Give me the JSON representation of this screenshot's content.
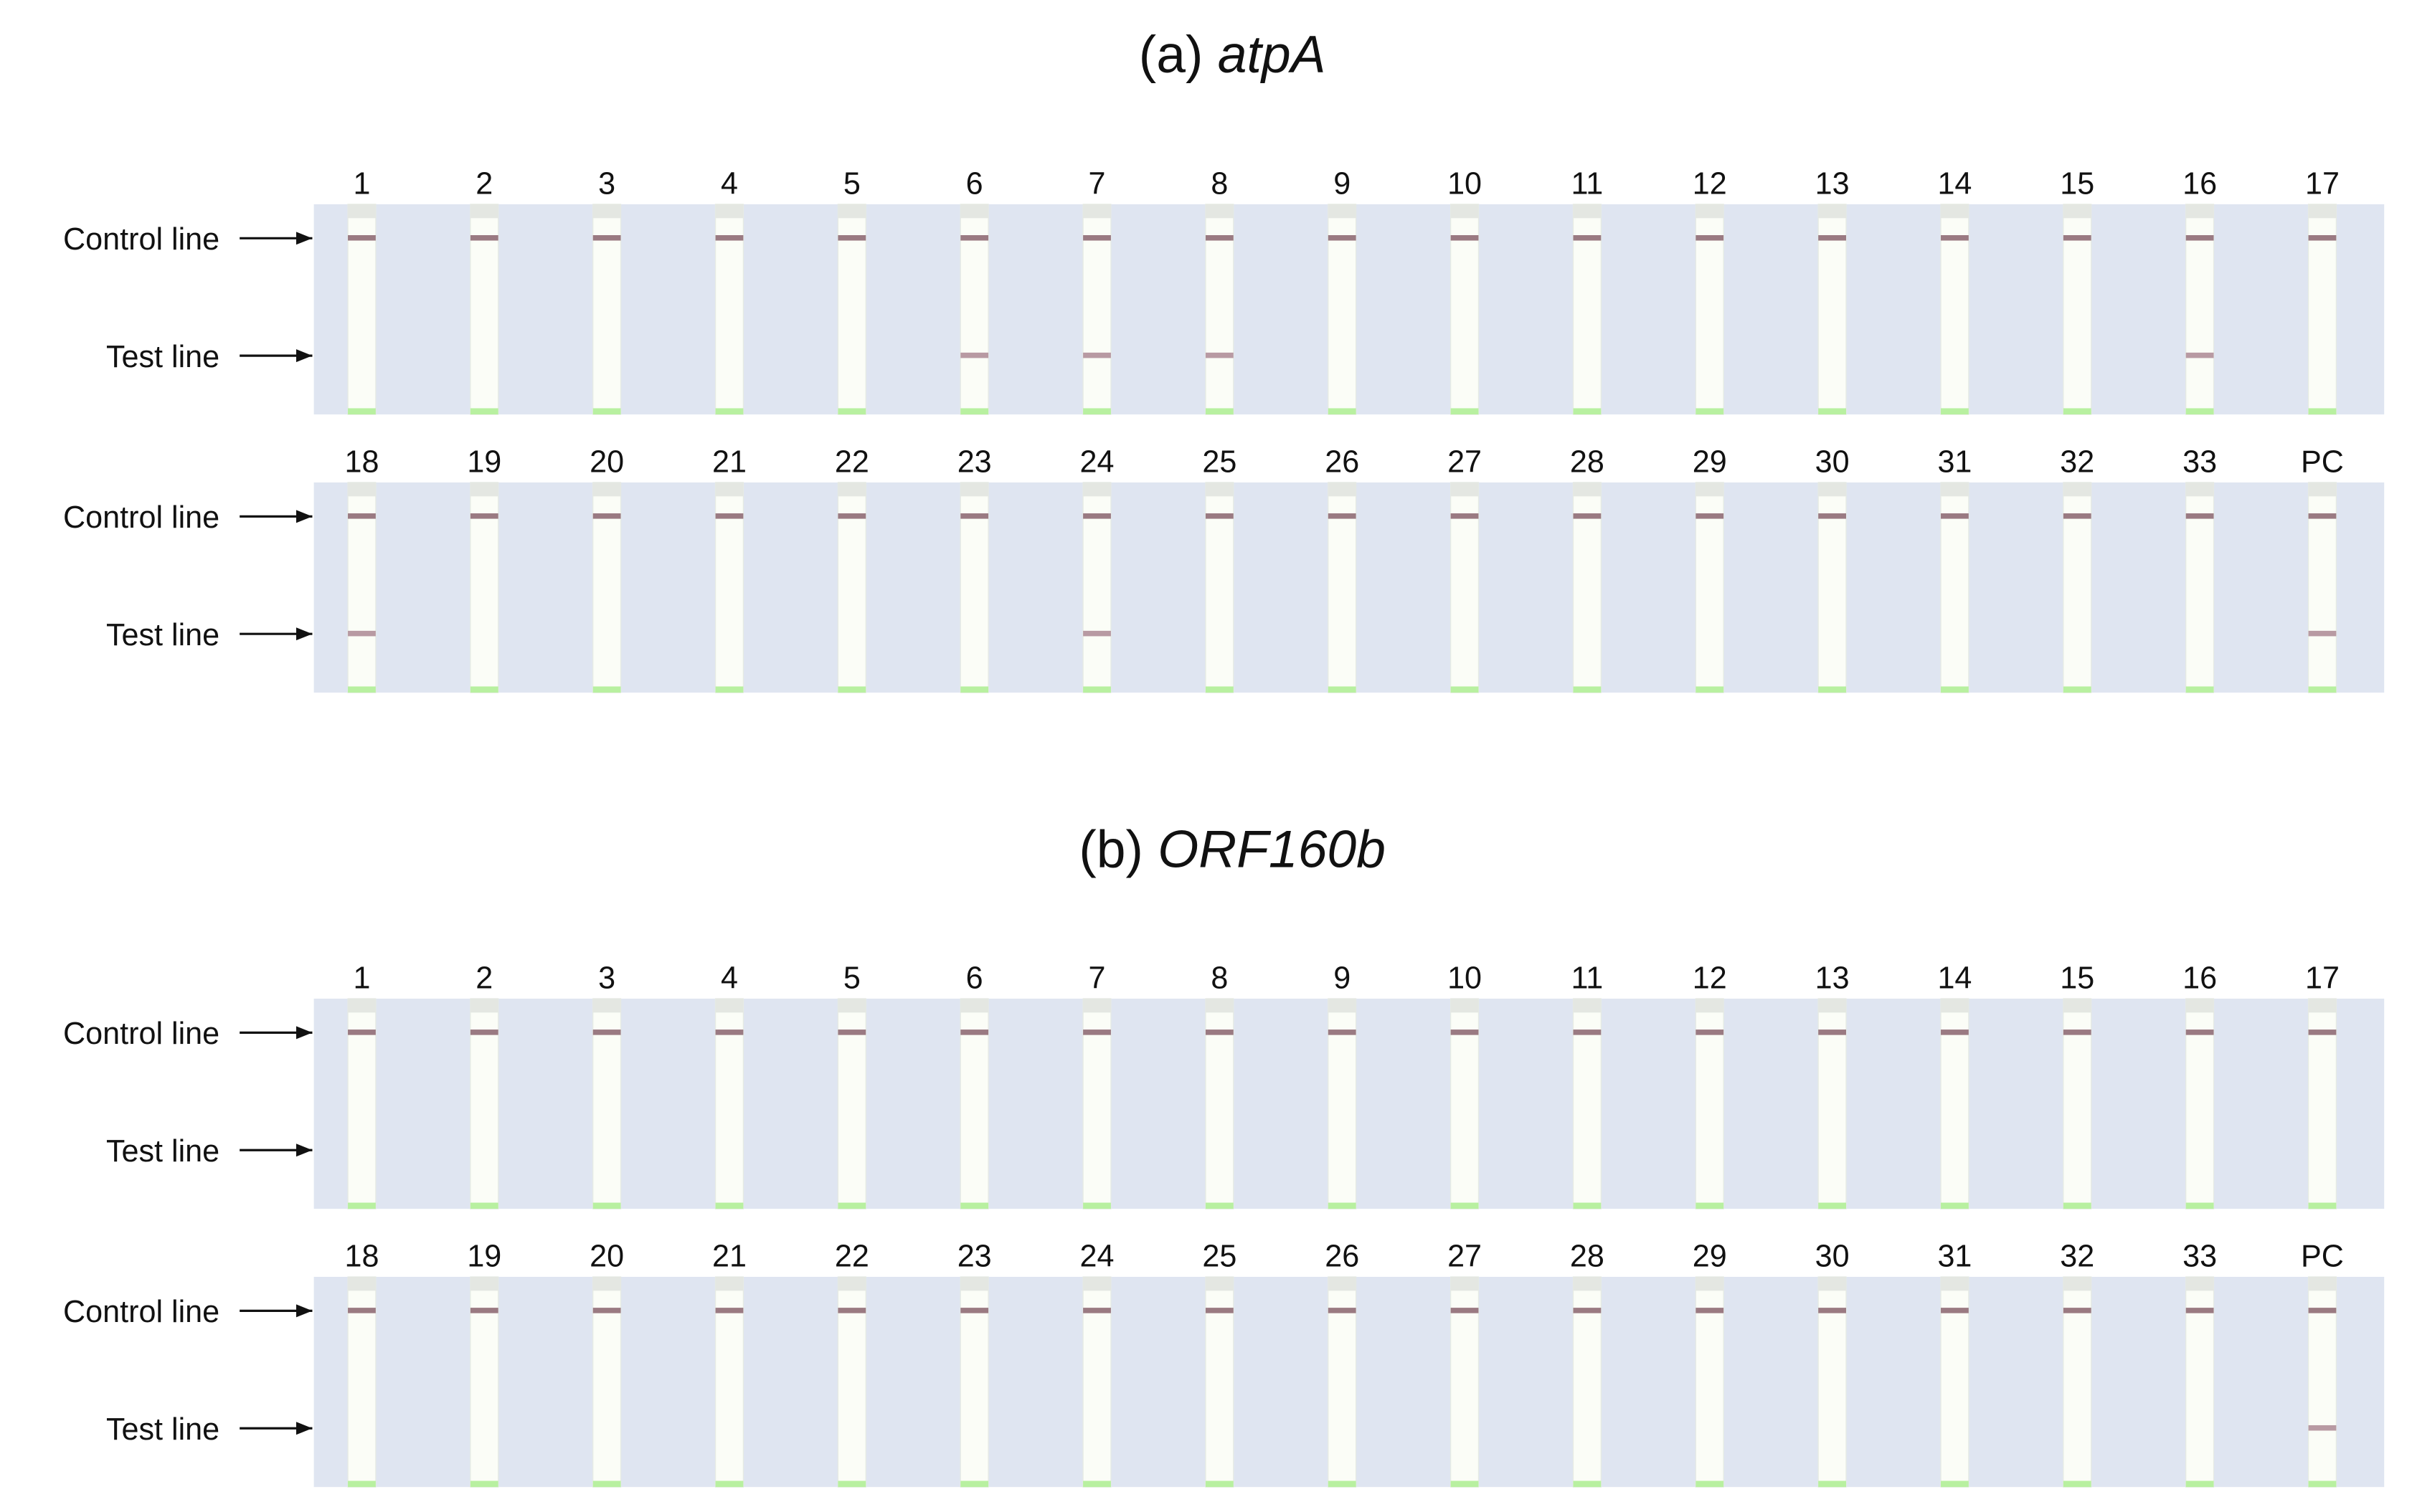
{
  "control_label": "Control line",
  "test_label": "Test line",
  "panels": [
    {
      "title": {
        "prefix": "(a) ",
        "gene": "atpA"
      },
      "rows": [
        {
          "lanes": [
            {
              "label": "1",
              "test_line": false
            },
            {
              "label": "2",
              "test_line": false
            },
            {
              "label": "3",
              "test_line": false
            },
            {
              "label": "4",
              "test_line": false
            },
            {
              "label": "5",
              "test_line": false
            },
            {
              "label": "6",
              "test_line": true
            },
            {
              "label": "7",
              "test_line": true
            },
            {
              "label": "8",
              "test_line": true
            },
            {
              "label": "9",
              "test_line": false
            },
            {
              "label": "10",
              "test_line": false
            },
            {
              "label": "11",
              "test_line": false
            },
            {
              "label": "12",
              "test_line": false
            },
            {
              "label": "13",
              "test_line": false
            },
            {
              "label": "14",
              "test_line": false
            },
            {
              "label": "15",
              "test_line": false
            },
            {
              "label": "16",
              "test_line": true
            },
            {
              "label": "17",
              "test_line": false
            }
          ]
        },
        {
          "lanes": [
            {
              "label": "18",
              "test_line": true
            },
            {
              "label": "19",
              "test_line": false
            },
            {
              "label": "20",
              "test_line": false
            },
            {
              "label": "21",
              "test_line": false
            },
            {
              "label": "22",
              "test_line": false
            },
            {
              "label": "23",
              "test_line": false
            },
            {
              "label": "24",
              "test_line": true
            },
            {
              "label": "25",
              "test_line": false
            },
            {
              "label": "26",
              "test_line": false
            },
            {
              "label": "27",
              "test_line": false
            },
            {
              "label": "28",
              "test_line": false
            },
            {
              "label": "29",
              "test_line": false
            },
            {
              "label": "30",
              "test_line": false
            },
            {
              "label": "31",
              "test_line": false
            },
            {
              "label": "32",
              "test_line": false
            },
            {
              "label": "33",
              "test_line": false
            },
            {
              "label": "PC",
              "test_line": true
            }
          ]
        }
      ]
    },
    {
      "title": {
        "prefix": "(b) ",
        "gene": "ORF160b"
      },
      "rows": [
        {
          "lanes": [
            {
              "label": "1",
              "test_line": false
            },
            {
              "label": "2",
              "test_line": false
            },
            {
              "label": "3",
              "test_line": false
            },
            {
              "label": "4",
              "test_line": false
            },
            {
              "label": "5",
              "test_line": false
            },
            {
              "label": "6",
              "test_line": false
            },
            {
              "label": "7",
              "test_line": false
            },
            {
              "label": "8",
              "test_line": false
            },
            {
              "label": "9",
              "test_line": false
            },
            {
              "label": "10",
              "test_line": false
            },
            {
              "label": "11",
              "test_line": false
            },
            {
              "label": "12",
              "test_line": false
            },
            {
              "label": "13",
              "test_line": false
            },
            {
              "label": "14",
              "test_line": false
            },
            {
              "label": "15",
              "test_line": false
            },
            {
              "label": "16",
              "test_line": false
            },
            {
              "label": "17",
              "test_line": false
            }
          ]
        },
        {
          "lanes": [
            {
              "label": "18",
              "test_line": false
            },
            {
              "label": "19",
              "test_line": false
            },
            {
              "label": "20",
              "test_line": false
            },
            {
              "label": "21",
              "test_line": false
            },
            {
              "label": "22",
              "test_line": false
            },
            {
              "label": "23",
              "test_line": false
            },
            {
              "label": "24",
              "test_line": false
            },
            {
              "label": "25",
              "test_line": false
            },
            {
              "label": "26",
              "test_line": false
            },
            {
              "label": "27",
              "test_line": false
            },
            {
              "label": "28",
              "test_line": false
            },
            {
              "label": "29",
              "test_line": false
            },
            {
              "label": "30",
              "test_line": false
            },
            {
              "label": "31",
              "test_line": false
            },
            {
              "label": "32",
              "test_line": false
            },
            {
              "label": "33",
              "test_line": false
            },
            {
              "label": "PC",
              "test_line": true
            }
          ]
        }
      ]
    }
  ]
}
